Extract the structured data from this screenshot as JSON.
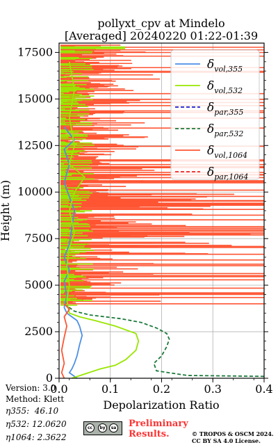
{
  "chart_data": {
    "type": "line",
    "title": [
      "pollyxt_cpv at Mindelo",
      "[Averaged] 20240220 01:22-01:39"
    ],
    "xlabel": "Depolarization Ratio",
    "ylabel": "Height (m)",
    "xlim": [
      0.0,
      0.4
    ],
    "ylim": [
      0,
      18000
    ],
    "xticks": [
      "0.0",
      "0.1",
      "0.2",
      "0.3",
      "0.4"
    ],
    "yticks": [
      "0",
      "2500",
      "5000",
      "7500",
      "10000",
      "12500",
      "15000",
      "17500"
    ],
    "grid": true,
    "legend_position": "top-right",
    "series": [
      {
        "name": "δvol,355",
        "sub": "vol,355",
        "color": "#4c8fe6",
        "dash": "solid",
        "x": [
          0.035,
          0.02,
          0.025,
          0.03,
          0.035,
          0.04,
          0.045,
          0.04,
          0.035,
          0.025,
          0.015,
          0.01,
          0.015,
          0.01,
          0.02,
          0.01,
          0.02,
          0.03,
          0.01,
          0.02,
          0.01,
          0.03,
          0.01
        ],
        "y": [
          0,
          300,
          500,
          800,
          1200,
          1800,
          2300,
          2800,
          3100,
          3300,
          3500,
          3800,
          4400,
          5200,
          5800,
          6500,
          7200,
          9000,
          10500,
          11500,
          12300,
          12800,
          13500
        ]
      },
      {
        "name": "δvol,532",
        "sub": "vol,532",
        "color": "#99e600",
        "dash": "solid",
        "x": [
          0.025,
          0.08,
          0.11,
          0.13,
          0.15,
          0.155,
          0.15,
          0.11,
          0.07,
          0.04,
          0.02,
          0.015,
          0.02,
          0.015,
          0.02,
          0.03,
          0.02,
          0.03,
          0.05,
          0.02,
          0.03,
          0.02,
          0.03,
          0.02
        ],
        "y": [
          0,
          500,
          700,
          1000,
          1500,
          2000,
          2400,
          2800,
          3100,
          3300,
          3500,
          4200,
          5000,
          6000,
          7000,
          7800,
          9000,
          10000,
          10800,
          11500,
          12500,
          14000,
          15500,
          17000
        ]
      },
      {
        "name": "δpar,355",
        "sub": "par,355",
        "color": "#1a1acc",
        "dash": "dash",
        "x": [],
        "y": []
      },
      {
        "name": "δpar,532",
        "sub": "par,532",
        "color": "#1a7a3a",
        "dash": "dash",
        "x": [
          0.4,
          0.25,
          0.19,
          0.185,
          0.2,
          0.21,
          0.215,
          0.21,
          0.19,
          0.16,
          0.12,
          0.06,
          0.03,
          0.015
        ],
        "y": [
          100,
          150,
          400,
          800,
          1200,
          1700,
          2100,
          2400,
          2700,
          3000,
          3200,
          3400,
          3600,
          3900
        ]
      },
      {
        "name": "δvol,1064",
        "sub": "vol,1064",
        "color": "#ff5533",
        "dash": "solid",
        "x": [
          0.01,
          0.005,
          0.01,
          0.005,
          0.01,
          0.015,
          0.01,
          0.02,
          0.01
        ],
        "y": [
          0,
          300,
          800,
          1500,
          2200,
          2800,
          3300,
          3700,
          4000
        ]
      },
      {
        "name": "δpar,1064",
        "sub": "par,1064",
        "color": "#ee2222",
        "dash": "dash",
        "x": [],
        "y": []
      }
    ]
  },
  "footer": {
    "version": "Version: 3.0",
    "method": "Method: Klett",
    "eta355": "η355:  46.10",
    "eta532": "η532: 12.0620",
    "eta1064": "η1064: 2.3622",
    "preliminary_line1": "Preliminary",
    "preliminary_line2": "Results.",
    "copyright_line1": "© TROPOS & OSCM 2024.",
    "copyright_line2": "CC BY SA 4.0 License.",
    "license_badge": [
      "cc",
      "by",
      "sa"
    ]
  }
}
